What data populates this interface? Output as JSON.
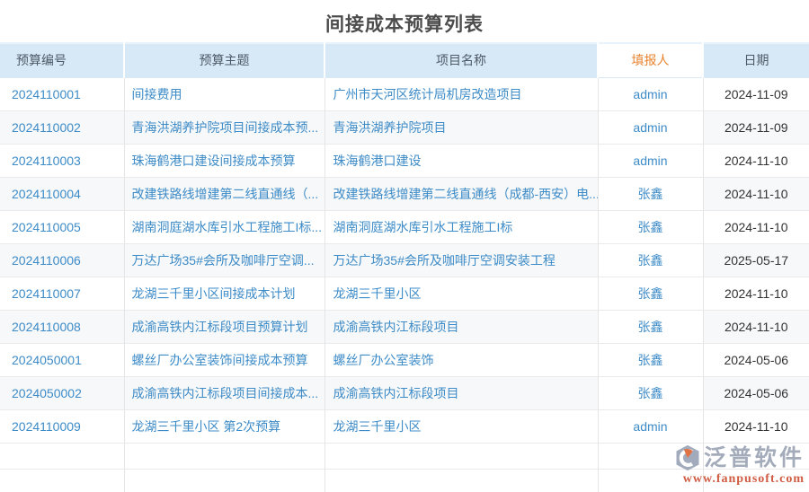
{
  "page": {
    "title": "间接成本预算列表"
  },
  "table": {
    "columns": [
      {
        "key": "budget_no",
        "label": "预算编号",
        "highlighted": false
      },
      {
        "key": "subject",
        "label": "预算主题",
        "highlighted": false
      },
      {
        "key": "project",
        "label": "项目名称",
        "highlighted": false
      },
      {
        "key": "filler",
        "label": "填报人",
        "highlighted": true
      },
      {
        "key": "date",
        "label": "日期",
        "highlighted": false
      }
    ],
    "rows": [
      {
        "budget_no": "2024110001",
        "subject": "间接费用",
        "project": "广州市天河区统计局机房改造项目",
        "filler": "admin",
        "date": "2024-11-09"
      },
      {
        "budget_no": "2024110002",
        "subject": "青海洪湖养护院项目间接成本预...",
        "project": "青海洪湖养护院项目",
        "filler": "admin",
        "date": "2024-11-09"
      },
      {
        "budget_no": "2024110003",
        "subject": "珠海鹤港口建设间接成本预算",
        "project": "珠海鹤港口建设",
        "filler": "admin",
        "date": "2024-11-10"
      },
      {
        "budget_no": "2024110004",
        "subject": "改建铁路线增建第二线直通线（...",
        "project": "改建铁路线增建第二线直通线（成都-西安）电...",
        "filler": "张鑫",
        "date": "2024-11-10"
      },
      {
        "budget_no": "2024110005",
        "subject": "湖南洞庭湖水库引水工程施工I标...",
        "project": "湖南洞庭湖水库引水工程施工I标",
        "filler": "张鑫",
        "date": "2024-11-10"
      },
      {
        "budget_no": "2024110006",
        "subject": "万达广场35#会所及咖啡厅空调...",
        "project": "万达广场35#会所及咖啡厅空调安装工程",
        "filler": "张鑫",
        "date": "2025-05-17"
      },
      {
        "budget_no": "2024110007",
        "subject": "龙湖三千里小区间接成本计划",
        "project": "龙湖三千里小区",
        "filler": "张鑫",
        "date": "2024-11-10"
      },
      {
        "budget_no": "2024110008",
        "subject": "成渝高铁内江标段项目预算计划",
        "project": "成渝高铁内江标段项目",
        "filler": "张鑫",
        "date": "2024-11-10"
      },
      {
        "budget_no": "2024050001",
        "subject": "螺丝厂办公室装饰间接成本预算",
        "project": "螺丝厂办公室装饰",
        "filler": "张鑫",
        "date": "2024-05-06"
      },
      {
        "budget_no": "2024050002",
        "subject": "成渝高铁内江标段项目间接成本...",
        "project": "成渝高铁内江标段项目",
        "filler": "张鑫",
        "date": "2024-05-06"
      },
      {
        "budget_no": "2024110009",
        "subject": "龙湖三千里小区 第2次预算",
        "project": "龙湖三千里小区",
        "filler": "admin",
        "date": "2024-11-10"
      }
    ],
    "empty_row_count": 2
  },
  "watermark": {
    "brand": "泛普软件",
    "url": "www.fanpusoft.com",
    "logo_icon": "fanpu-hexagon-swoosh"
  },
  "colors": {
    "link_blue": "#3D8BC7",
    "header_bg": "#D7E8F6",
    "header_text": "#4E5A68",
    "highlight_orange": "#E8822D",
    "date_text": "#333333",
    "stripe_bg": "#F7F8F9",
    "title_text": "#4C4C4C",
    "watermark_gray": "#98A1B2",
    "watermark_red": "#C9462A"
  }
}
